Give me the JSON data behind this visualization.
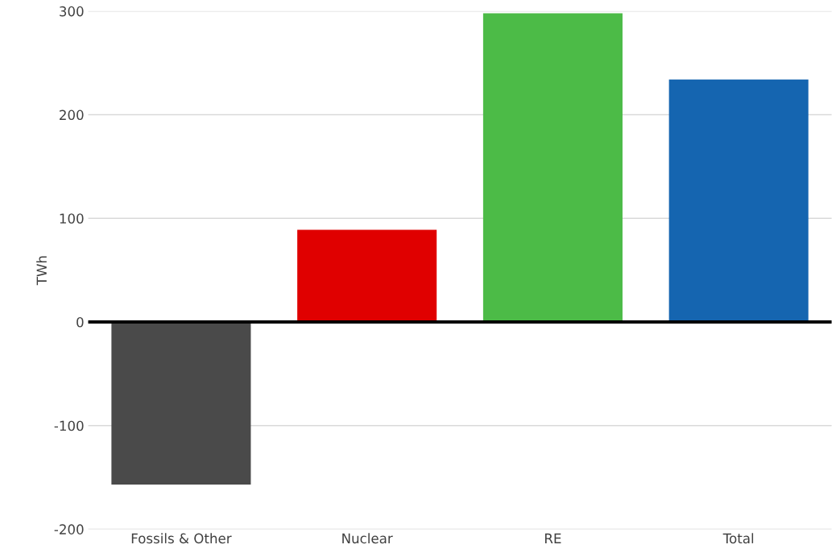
{
  "chart_data": {
    "type": "bar",
    "ylabel": "TWh",
    "categories": [
      "Fossils & Other",
      "Nuclear",
      "RE",
      "Total"
    ],
    "values": [
      -157,
      89,
      298,
      234
    ],
    "colors": [
      "#4a4a4a",
      "#e00000",
      "#4cbb47",
      "#1565b0"
    ],
    "ylim": [
      -200,
      300
    ],
    "yticks": [
      -200,
      -100,
      0,
      100,
      200,
      300
    ],
    "grid": "y",
    "ref_lines": [
      {
        "axis": "y",
        "value": 0,
        "color": "#000000",
        "line_style": "solid"
      }
    ]
  }
}
